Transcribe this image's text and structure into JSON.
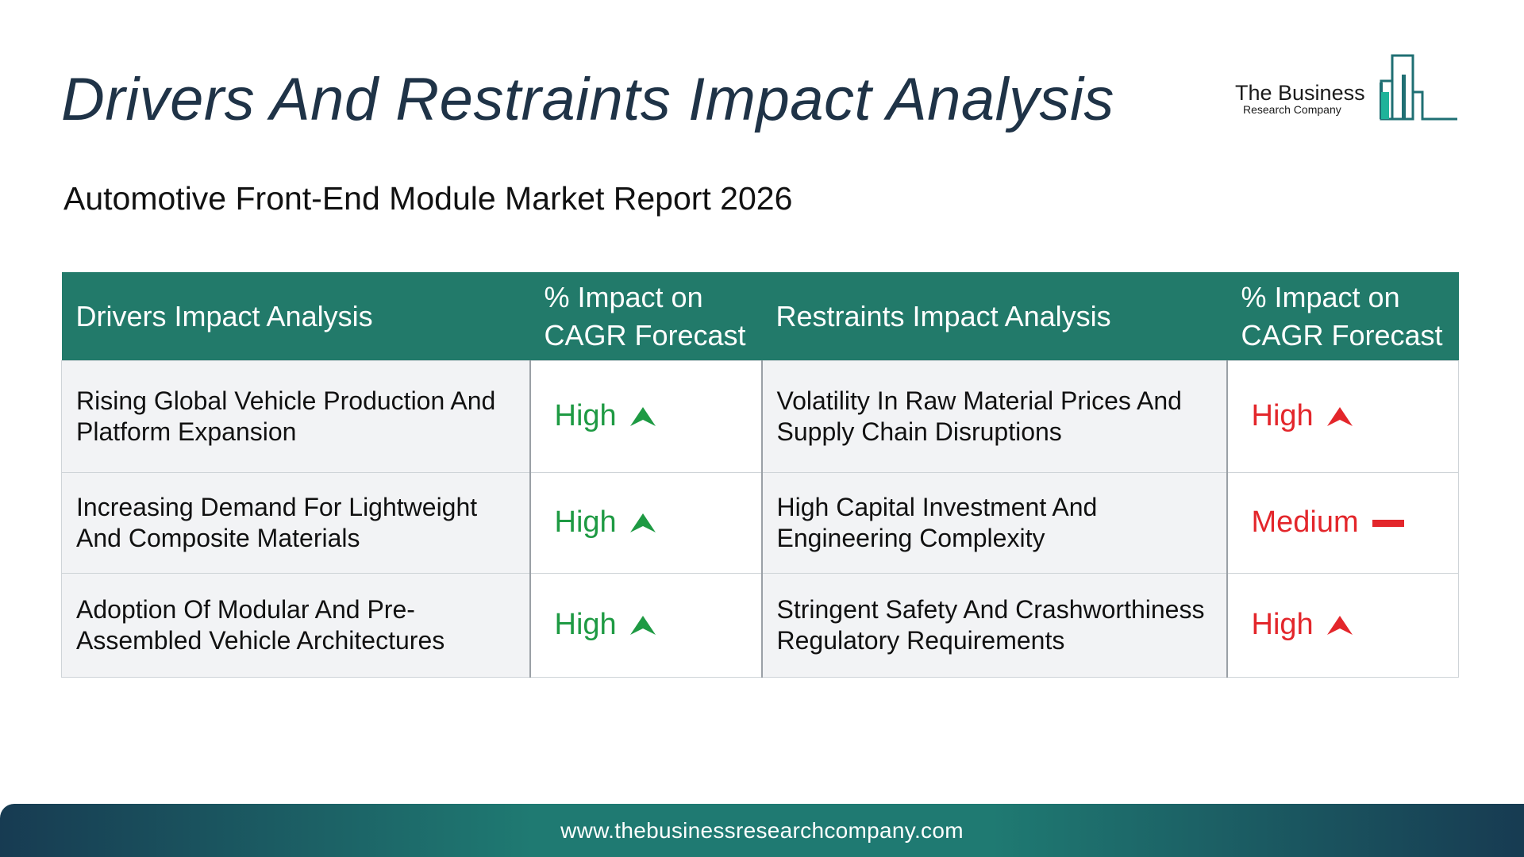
{
  "header": {
    "title": "Drivers And Restraints Impact Analysis",
    "subtitle": "Automotive Front-End Module Market Report 2026"
  },
  "logo": {
    "name": "The Business",
    "tagline": "Research Company"
  },
  "table": {
    "headers": [
      "Drivers Impact Analysis",
      "% Impact on CAGR Forecast",
      "Restraints Impact Analysis",
      "% Impact on CAGR Forecast"
    ],
    "rows": [
      {
        "driver": "Rising Global Vehicle Production And Platform Expansion",
        "driver_impact": "High",
        "driver_trend": "up",
        "restraint": "Volatility In Raw Material Prices And Supply Chain Disruptions",
        "restraint_impact": "High",
        "restraint_trend": "up"
      },
      {
        "driver": "Increasing Demand For Lightweight And Composite Materials",
        "driver_impact": "High",
        "driver_trend": "up",
        "restraint": "High Capital Investment And Engineering Complexity",
        "restraint_impact": "Medium",
        "restraint_trend": "flat"
      },
      {
        "driver": "Adoption Of Modular And Pre-Assembled Vehicle Architectures",
        "driver_impact": "High",
        "driver_trend": "up",
        "restraint": "Stringent Safety And Crashworthiness Regulatory Requirements",
        "restraint_impact": "High",
        "restraint_trend": "up"
      }
    ]
  },
  "colors": {
    "header_bg": "#227a6a",
    "driver_high": "#1e9a43",
    "restraint": "#e3262b",
    "title": "#1f3347"
  },
  "footer": {
    "url": "www.thebusinessresearchcompany.com"
  }
}
